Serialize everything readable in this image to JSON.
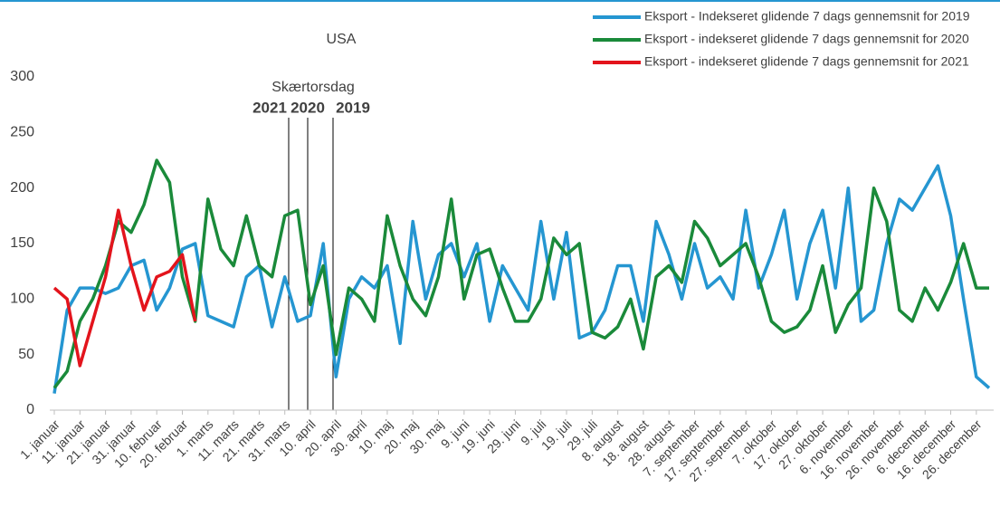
{
  "chart_data": {
    "type": "line",
    "title": "USA",
    "categories": [
      "1. januar",
      null,
      "11. januar",
      null,
      "21. januar",
      null,
      "31. januar",
      null,
      "10. februar",
      null,
      "20. februar",
      null,
      "1. marts",
      null,
      "11. marts",
      null,
      "21. marts",
      null,
      "31. marts",
      null,
      "10. april",
      null,
      "20. april",
      null,
      "30. april",
      null,
      "10. maj",
      null,
      "20. maj",
      null,
      "30. maj",
      null,
      "9. juni",
      null,
      "19. juni",
      null,
      "29. juni",
      null,
      "9. juli",
      null,
      "19. juli",
      null,
      "29. juli",
      null,
      "8. august",
      null,
      "18. august",
      null,
      "28. august",
      null,
      "7. september",
      null,
      "17. september",
      null,
      "27. september",
      null,
      "7. oktober",
      null,
      "17. oktober",
      null,
      "27. oktober",
      null,
      "6. november",
      null,
      "16. november",
      null,
      "26. november",
      null,
      "6. december",
      null,
      "16. december",
      null,
      "26. december",
      null
    ],
    "series": [
      {
        "name": "Eksport - Indekseret glidende 7 dags gennemsnit for 2019",
        "color": "#2596d1",
        "values": [
          15,
          90,
          110,
          110,
          105,
          110,
          130,
          135,
          90,
          110,
          145,
          150,
          85,
          80,
          75,
          120,
          130,
          75,
          120,
          80,
          85,
          150,
          30,
          100,
          120,
          110,
          130,
          60,
          170,
          100,
          140,
          150,
          120,
          150,
          80,
          130,
          110,
          90,
          170,
          100,
          160,
          65,
          70,
          90,
          130,
          130,
          80,
          170,
          140,
          100,
          150,
          110,
          120,
          100,
          180,
          110,
          140,
          180,
          100,
          150,
          180,
          110,
          200,
          80,
          90,
          150,
          190,
          180,
          200,
          220,
          175,
          100,
          30,
          20
        ]
      },
      {
        "name": "Eksport - indekseret glidende 7 dags gennemsnit for 2020",
        "color": "#1a8a3a",
        "values": [
          20,
          35,
          80,
          100,
          130,
          170,
          160,
          185,
          225,
          205,
          120,
          80,
          190,
          145,
          130,
          175,
          130,
          120,
          175,
          180,
          95,
          130,
          50,
          110,
          100,
          80,
          175,
          130,
          100,
          85,
          120,
          190,
          100,
          140,
          145,
          110,
          80,
          80,
          100,
          155,
          140,
          150,
          70,
          65,
          75,
          100,
          55,
          120,
          130,
          115,
          170,
          155,
          130,
          140,
          150,
          120,
          80,
          70,
          75,
          90,
          130,
          70,
          95,
          110,
          200,
          170,
          90,
          80,
          110,
          90,
          115,
          150,
          110,
          110
        ]
      },
      {
        "name": "Eksport - indekseret glidende 7 dags gennemsnit for 2021",
        "color": "#e3141c",
        "values": [
          110,
          100,
          40,
          80,
          120,
          180,
          130,
          90,
          120,
          125,
          140,
          80,
          null,
          null,
          null,
          null,
          null,
          null,
          null,
          null,
          null,
          null,
          null,
          null,
          null,
          null,
          null,
          null,
          null,
          null,
          null,
          null,
          null,
          null,
          null,
          null,
          null,
          null,
          null,
          null,
          null,
          null,
          null,
          null,
          null,
          null,
          null,
          null,
          null,
          null,
          null,
          null,
          null,
          null,
          null,
          null,
          null,
          null,
          null,
          null,
          null,
          null,
          null,
          null,
          null,
          null,
          null,
          null,
          null,
          null,
          null,
          null,
          null,
          null
        ]
      }
    ],
    "ylim": [
      0,
      300
    ],
    "yticks": [
      0,
      50,
      100,
      150,
      200,
      250,
      300
    ],
    "grid": false,
    "legend": "top-right",
    "annotations": [
      {
        "text": "Skærtorsdag",
        "color": "#404040"
      },
      {
        "text": "2021",
        "color": "#e3141c"
      },
      {
        "text": "2020",
        "color": "#1a8a3a"
      },
      {
        "text": "2019",
        "color": "#2596d1"
      }
    ]
  }
}
